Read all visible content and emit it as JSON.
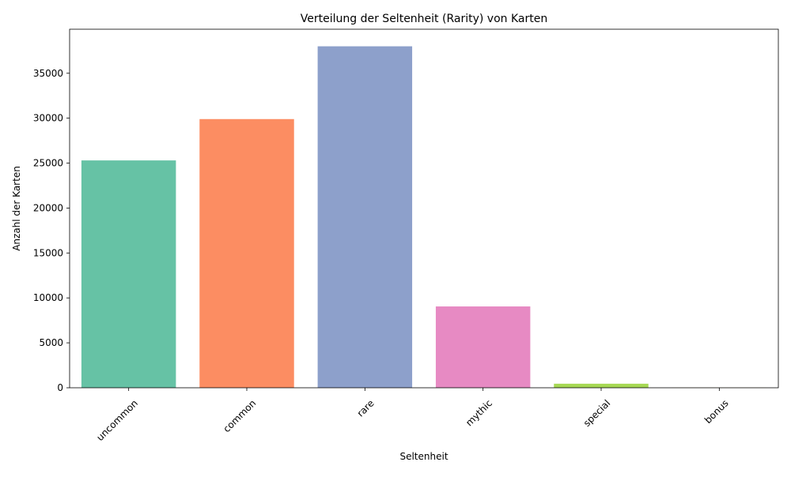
{
  "chart_data": {
    "type": "bar",
    "title": "Verteilung der Seltenheit (Rarity) von Karten",
    "xlabel": "Seltenheit",
    "ylabel": "Anzahl der Karten",
    "categories": [
      "uncommon",
      "common",
      "rare",
      "mythic",
      "special",
      "bonus"
    ],
    "values": [
      25300,
      29900,
      38000,
      9050,
      450,
      10
    ],
    "colors": [
      "#66c2a5",
      "#fc8d62",
      "#8da0cb",
      "#e78ac3",
      "#a6d854",
      "#ffd92f"
    ],
    "ylim": [
      0,
      39900
    ],
    "yticks": [
      0,
      5000,
      10000,
      15000,
      20000,
      25000,
      30000,
      35000
    ],
    "grid": false,
    "legend": "none",
    "xtick_rotation": 45
  }
}
